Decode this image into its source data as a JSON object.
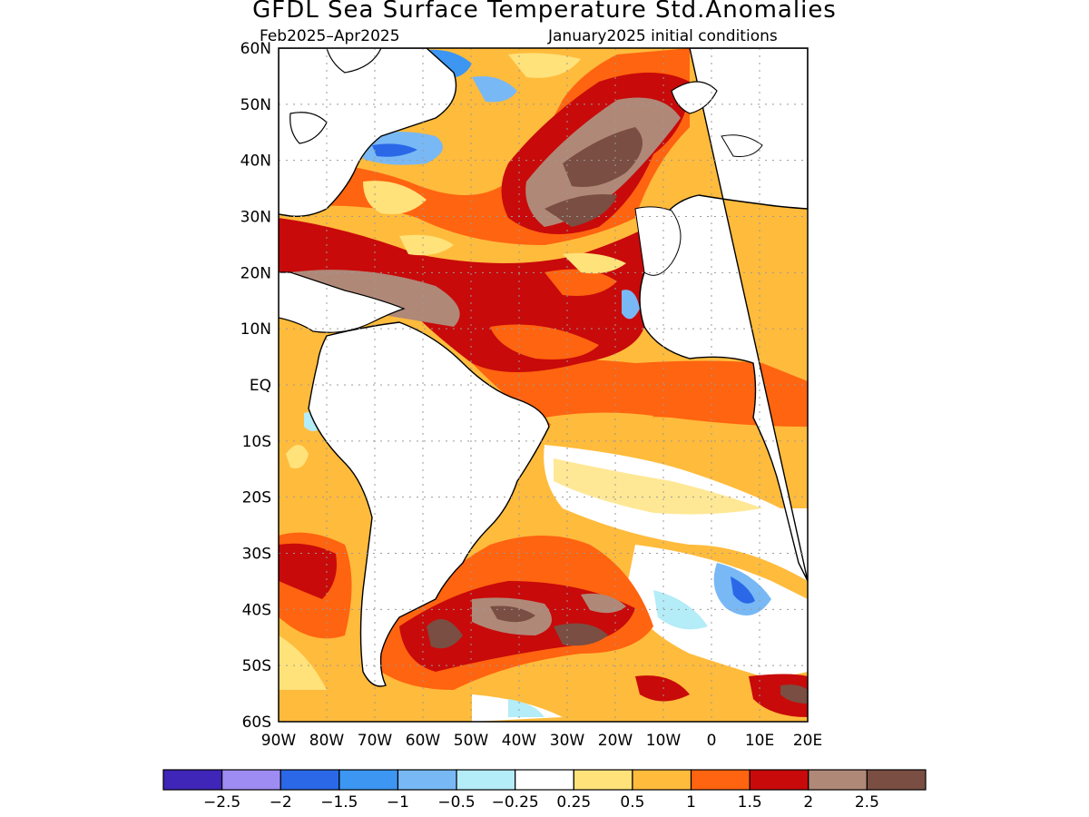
{
  "title": "GFDL Sea Surface Temperature Std.Anomalies",
  "period": "Feb2025–Apr2025",
  "initial_conditions": "January2025 initial conditions",
  "lat_labels": [
    "60N",
    "50N",
    "40N",
    "30N",
    "20N",
    "10N",
    "EQ",
    "10S",
    "20S",
    "30S",
    "40S",
    "50S",
    "60S"
  ],
  "lon_labels": [
    "90W",
    "80W",
    "70W",
    "60W",
    "50W",
    "40W",
    "30W",
    "20W",
    "10W",
    "0",
    "10E",
    "20E"
  ],
  "colorbar": {
    "colors": [
      "#3f25b8",
      "#9f8cf2",
      "#2a68e8",
      "#3c96f2",
      "#78b8f5",
      "#b4ecf8",
      "#ffffff",
      "#ffe27a",
      "#ffbb3c",
      "#ff6410",
      "#c80a0a",
      "#b08878",
      "#7a4e42"
    ],
    "labels": [
      "−2.5",
      "−2",
      "−1.5",
      "−1",
      "−0.5",
      "−0.25",
      "0.25",
      "0.5",
      "1",
      "1.5",
      "2",
      "2.5"
    ]
  }
}
